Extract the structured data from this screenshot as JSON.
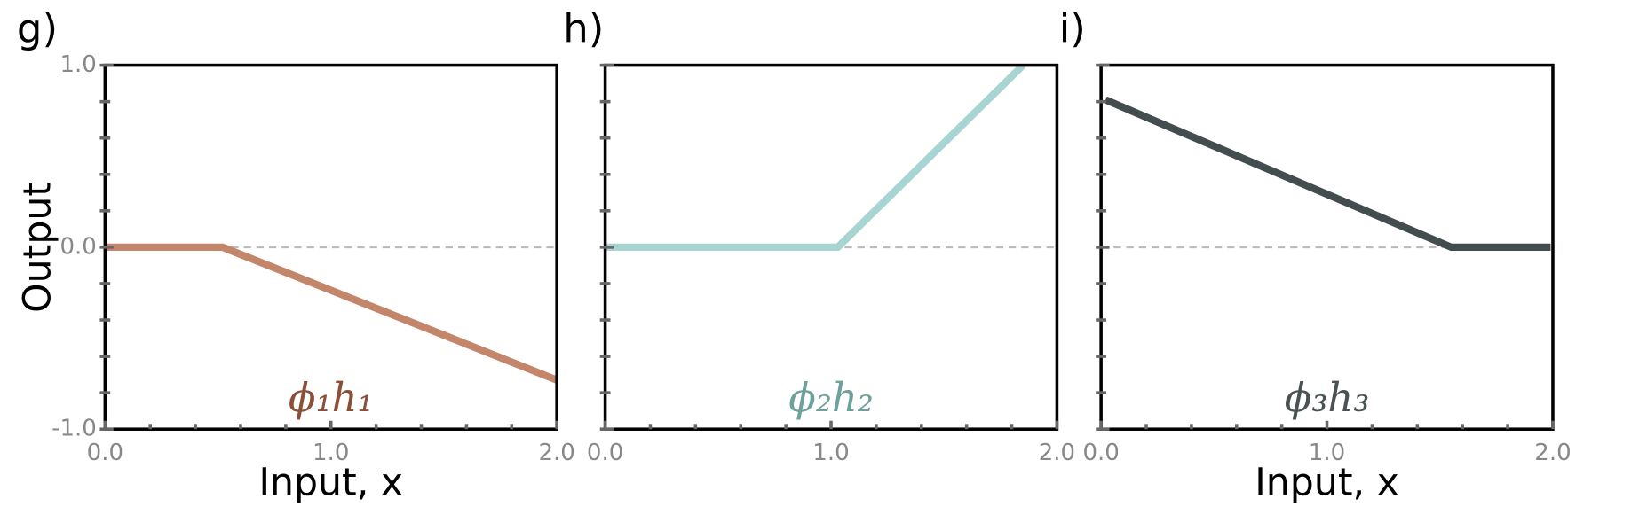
{
  "chart_data": [
    {
      "type": "line",
      "title": "g)",
      "ylabel": "Output",
      "xlabel": "Input, x",
      "annotation": "ϕ₁h₁",
      "annotation_color": "#8a4f36",
      "series": [
        {
          "color": "#c4866a",
          "x": [
            0,
            0.52,
            2.0
          ],
          "values": [
            0,
            0,
            -0.73
          ]
        }
      ],
      "xlim": [
        0,
        2
      ],
      "ylim": [
        -1,
        1
      ],
      "reference_line": 0,
      "xticks": [
        {
          "value": 0,
          "label": "0.0"
        },
        {
          "value": 1,
          "label": "1.0"
        },
        {
          "value": 2,
          "label": "2.0"
        }
      ],
      "yticks": [
        {
          "value": -1,
          "label": "-1.0"
        },
        {
          "value": 0,
          "label": "0.0"
        },
        {
          "value": 1,
          "label": "1.0"
        }
      ],
      "minor_xticks": [
        0.2,
        0.4,
        0.6,
        0.8,
        1.2,
        1.4,
        1.6,
        1.8
      ],
      "minor_yticks": [
        -0.8,
        -0.6,
        -0.4,
        -0.2,
        0.2,
        0.4,
        0.6,
        0.8
      ]
    },
    {
      "type": "line",
      "title": "h)",
      "annotation": "ϕ₂h₂",
      "annotation_color": "#6ea09c",
      "series": [
        {
          "color": "#a8d5d1",
          "x": [
            0,
            1.03,
            1.85
          ],
          "values": [
            0,
            0,
            1.0
          ]
        }
      ],
      "xlim": [
        0,
        2
      ],
      "ylim": [
        -1,
        1
      ],
      "reference_line": 0,
      "xticks": [
        {
          "value": 0,
          "label": "0.0"
        },
        {
          "value": 1,
          "label": "1.0"
        },
        {
          "value": 2,
          "label": "2.0"
        }
      ],
      "yticks": [
        -1,
        0,
        1
      ],
      "minor_xticks": [
        0.2,
        0.4,
        0.6,
        0.8,
        1.2,
        1.4,
        1.6,
        1.8
      ],
      "minor_yticks": [
        -0.8,
        -0.6,
        -0.4,
        -0.2,
        0.2,
        0.4,
        0.6,
        0.8
      ]
    },
    {
      "type": "line",
      "title": "i)",
      "xlabel": "Input, x",
      "annotation": "ϕ₃h₃",
      "annotation_color": "#4a5254",
      "series": [
        {
          "color": "#434c4e",
          "x": [
            0.02,
            1.55,
            1.99
          ],
          "values": [
            0.81,
            0,
            0
          ]
        }
      ],
      "xlim": [
        0,
        2
      ],
      "ylim": [
        -1,
        1
      ],
      "reference_line": 0,
      "xticks": [
        {
          "value": 0,
          "label": "0.0"
        },
        {
          "value": 1,
          "label": "1.0"
        },
        {
          "value": 2,
          "label": "2.0"
        }
      ],
      "yticks": [
        -1,
        0,
        1
      ],
      "minor_xticks": [
        0.2,
        0.4,
        0.6,
        0.8,
        1.2,
        1.4,
        1.6,
        1.8
      ],
      "minor_yticks": [
        -0.8,
        -0.6,
        -0.4,
        -0.2,
        0.2,
        0.4,
        0.6,
        0.8
      ]
    }
  ]
}
